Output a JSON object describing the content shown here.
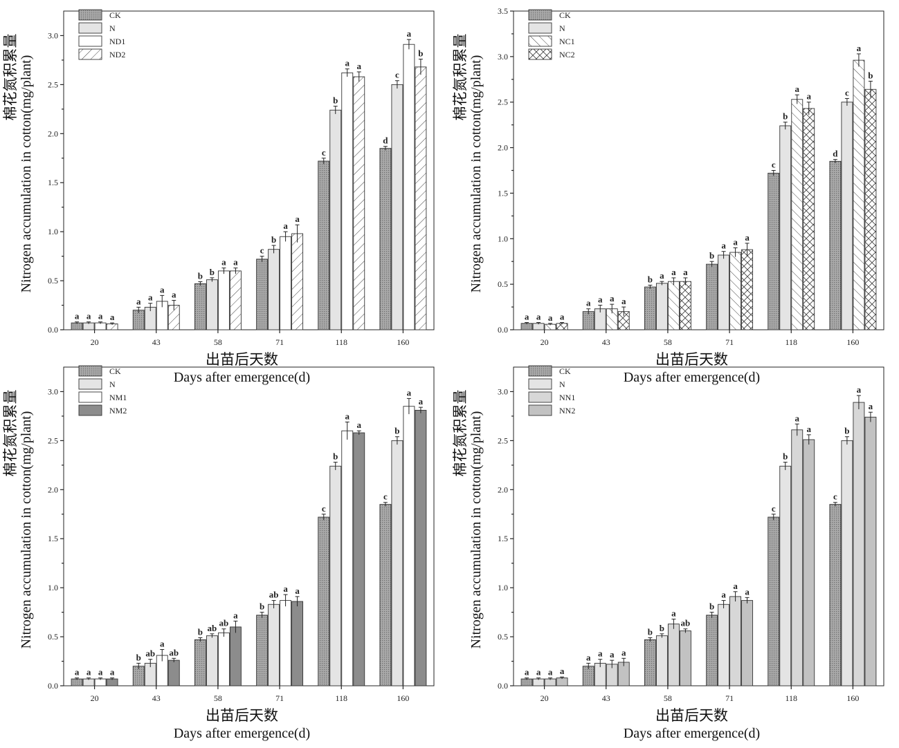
{
  "chart_data": [
    {
      "type": "bar",
      "panel": "top-left",
      "categories": [
        "20",
        "43",
        "58",
        "71",
        "118",
        "160"
      ],
      "xlabel_cn": "出苗后天数",
      "xlabel": "Days after emergence(d)",
      "ylabel_cn": "棉花氮积累量",
      "ylabel": "Nitrogen accumulation in cotton(mg/plant)",
      "ylim": [
        0,
        3.25
      ],
      "yticks": [
        "0.0",
        "0.5",
        "1.0",
        "1.5",
        "2.0",
        "2.5",
        "3.0"
      ],
      "legend_position": "top-left",
      "series": [
        {
          "name": "CK",
          "pattern": "dots",
          "values": [
            0.07,
            0.2,
            0.47,
            0.72,
            1.72,
            1.85
          ],
          "errors": [
            0.01,
            0.03,
            0.02,
            0.03,
            0.03,
            0.02
          ],
          "letters": [
            "a",
            "a",
            "b",
            "c",
            "c",
            "d"
          ]
        },
        {
          "name": "N",
          "pattern": "light",
          "values": [
            0.07,
            0.23,
            0.51,
            0.82,
            2.24,
            2.5
          ],
          "errors": [
            0.01,
            0.04,
            0.02,
            0.04,
            0.04,
            0.04
          ],
          "letters": [
            "a",
            "a",
            "b",
            "b",
            "b",
            "c"
          ]
        },
        {
          "name": "ND1",
          "pattern": "white",
          "values": [
            0.07,
            0.29,
            0.6,
            0.95,
            2.62,
            2.91
          ],
          "errors": [
            0.01,
            0.06,
            0.03,
            0.05,
            0.04,
            0.05
          ],
          "letters": [
            "a",
            "a",
            "a",
            "a",
            "a",
            "a"
          ]
        },
        {
          "name": "ND2",
          "pattern": "diag",
          "values": [
            0.06,
            0.25,
            0.6,
            0.98,
            2.58,
            2.68
          ],
          "errors": [
            0.01,
            0.05,
            0.03,
            0.09,
            0.05,
            0.08
          ],
          "letters": [
            "a",
            "a",
            "a",
            "a",
            "a",
            "b"
          ]
        }
      ]
    },
    {
      "type": "bar",
      "panel": "top-right",
      "categories": [
        "20",
        "43",
        "58",
        "71",
        "118",
        "160"
      ],
      "xlabel_cn": "出苗后天数",
      "xlabel": "Days after emergence(d)",
      "ylabel_cn": "棉花氮积累量",
      "ylabel": "Nitrogen accumulation in cotton(mg/plant)",
      "ylim": [
        0,
        3.5
      ],
      "yticks": [
        "0.0",
        "0.5",
        "1.0",
        "1.5",
        "2.0",
        "2.5",
        "3.0",
        "3.5"
      ],
      "legend_position": "top-left",
      "series": [
        {
          "name": "CK",
          "pattern": "dots",
          "values": [
            0.07,
            0.2,
            0.47,
            0.72,
            1.72,
            1.85
          ],
          "errors": [
            0.01,
            0.03,
            0.02,
            0.03,
            0.03,
            0.02
          ],
          "letters": [
            "a",
            "a",
            "b",
            "b",
            "c",
            "d"
          ]
        },
        {
          "name": "N",
          "pattern": "light",
          "values": [
            0.07,
            0.23,
            0.51,
            0.82,
            2.24,
            2.5
          ],
          "errors": [
            0.01,
            0.04,
            0.02,
            0.04,
            0.04,
            0.04
          ],
          "letters": [
            "a",
            "a",
            "a",
            "a",
            "b",
            "c"
          ]
        },
        {
          "name": "NC1",
          "pattern": "diagback",
          "values": [
            0.06,
            0.23,
            0.53,
            0.85,
            2.53,
            2.96
          ],
          "errors": [
            0.01,
            0.05,
            0.04,
            0.05,
            0.05,
            0.07
          ],
          "letters": [
            "a",
            "a",
            "a",
            "a",
            "a",
            "a"
          ]
        },
        {
          "name": "NC2",
          "pattern": "cross",
          "values": [
            0.07,
            0.2,
            0.53,
            0.88,
            2.43,
            2.64
          ],
          "errors": [
            0.01,
            0.05,
            0.04,
            0.07,
            0.07,
            0.09
          ],
          "letters": [
            "a",
            "a",
            "a",
            "a",
            "a",
            "b"
          ]
        }
      ]
    },
    {
      "type": "bar",
      "panel": "bottom-left",
      "categories": [
        "20",
        "43",
        "58",
        "71",
        "118",
        "160"
      ],
      "xlabel_cn": "出苗后天数",
      "xlabel": "Days after emergence(d)",
      "ylabel_cn": "棉花氮积累量",
      "ylabel": "Nitrogen accumulation in cotton(mg/plant)",
      "ylim": [
        0,
        3.25
      ],
      "yticks": [
        "0.0",
        "0.5",
        "1.0",
        "1.5",
        "2.0",
        "2.5",
        "3.0"
      ],
      "legend_position": "top-left",
      "series": [
        {
          "name": "CK",
          "pattern": "dots",
          "values": [
            0.07,
            0.2,
            0.47,
            0.72,
            1.72,
            1.85
          ],
          "errors": [
            0.01,
            0.03,
            0.02,
            0.03,
            0.03,
            0.02
          ],
          "letters": [
            "a",
            "b",
            "b",
            "b",
            "c",
            "c"
          ]
        },
        {
          "name": "N",
          "pattern": "light",
          "values": [
            0.07,
            0.23,
            0.51,
            0.83,
            2.24,
            2.5
          ],
          "errors": [
            0.01,
            0.04,
            0.02,
            0.04,
            0.04,
            0.04
          ],
          "letters": [
            "a",
            "ab",
            "ab",
            "ab",
            "b",
            "b"
          ]
        },
        {
          "name": "NM1",
          "pattern": "white",
          "values": [
            0.07,
            0.31,
            0.54,
            0.87,
            2.6,
            2.85
          ],
          "errors": [
            0.01,
            0.06,
            0.04,
            0.06,
            0.09,
            0.08
          ],
          "letters": [
            "a",
            "a",
            "ab",
            "a",
            "a",
            "a"
          ]
        },
        {
          "name": "NM2",
          "pattern": "dark",
          "values": [
            0.07,
            0.26,
            0.6,
            0.86,
            2.58,
            2.81
          ],
          "errors": [
            0.01,
            0.02,
            0.06,
            0.05,
            0.02,
            0.03
          ],
          "letters": [
            "a",
            "ab",
            "a",
            "a",
            "a",
            "a"
          ]
        }
      ]
    },
    {
      "type": "bar",
      "panel": "bottom-right",
      "categories": [
        "20",
        "43",
        "58",
        "71",
        "118",
        "160"
      ],
      "xlabel_cn": "出苗后天数",
      "xlabel": "Days after emergence(d)",
      "ylabel_cn": "棉花氮积累量",
      "ylabel": "Nitrogen accumulation in cotton(mg/plant)",
      "ylim": [
        0,
        3.25
      ],
      "yticks": [
        "0.0",
        "0.5",
        "1.0",
        "1.5",
        "2.0",
        "2.5",
        "3.0"
      ],
      "legend_position": "top-left",
      "series": [
        {
          "name": "CK",
          "pattern": "dots",
          "values": [
            0.07,
            0.2,
            0.47,
            0.72,
            1.72,
            1.85
          ],
          "errors": [
            0.01,
            0.03,
            0.02,
            0.03,
            0.03,
            0.02
          ],
          "letters": [
            "a",
            "a",
            "b",
            "b",
            "c",
            "c"
          ]
        },
        {
          "name": "N",
          "pattern": "light",
          "values": [
            0.07,
            0.23,
            0.51,
            0.83,
            2.24,
            2.5
          ],
          "errors": [
            0.01,
            0.04,
            0.02,
            0.04,
            0.04,
            0.04
          ],
          "letters": [
            "a",
            "a",
            "b",
            "a",
            "b",
            "b"
          ]
        },
        {
          "name": "NN1",
          "pattern": "midlight",
          "values": [
            0.07,
            0.22,
            0.63,
            0.91,
            2.61,
            2.89
          ],
          "errors": [
            0.01,
            0.04,
            0.05,
            0.05,
            0.06,
            0.07
          ],
          "letters": [
            "a",
            "a",
            "a",
            "a",
            "a",
            "a"
          ]
        },
        {
          "name": "NN2",
          "pattern": "mid",
          "values": [
            0.08,
            0.24,
            0.56,
            0.87,
            2.51,
            2.74
          ],
          "errors": [
            0.01,
            0.04,
            0.02,
            0.03,
            0.05,
            0.05
          ],
          "letters": [
            "a",
            "a",
            "ab",
            "a",
            "a",
            "a"
          ]
        }
      ]
    }
  ]
}
